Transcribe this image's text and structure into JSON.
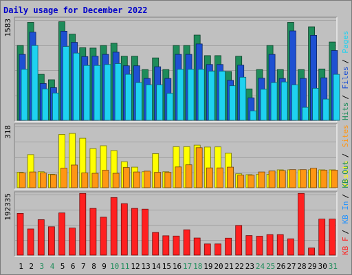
{
  "chart_data": {
    "type": "bar",
    "title": "Daily usage for December 2022",
    "categories": [
      "1",
      "2",
      "3",
      "4",
      "5",
      "6",
      "7",
      "8",
      "9",
      "10",
      "11",
      "12",
      "13",
      "14",
      "15",
      "16",
      "17",
      "18",
      "19",
      "20",
      "21",
      "22",
      "23",
      "24",
      "25",
      "26",
      "27",
      "28",
      "29",
      "30",
      "31"
    ],
    "weekend_days": [
      "3",
      "4",
      "10",
      "11",
      "17",
      "18",
      "24",
      "25",
      "31"
    ],
    "colors": {
      "hits": "#1e8c5a",
      "files": "#1e50d2",
      "pages": "#1ed2f0",
      "visits": "#ffff00",
      "sites": "#ff9614",
      "kbin": "#1e90ff",
      "kbout": "#1e8c5a",
      "kbf": "#ff2020",
      "title": "#0000c8",
      "weekend_label": "#1e8c5a"
    },
    "panels": [
      {
        "id": "requests",
        "ymax": 1583,
        "ytick_label": "1583",
        "legend": [
          {
            "text": "Hits",
            "color_key": "hits"
          },
          {
            "text": "Files",
            "color_key": "files"
          },
          {
            "text": "Pages",
            "color_key": "pages"
          }
        ],
        "series": [
          {
            "name": "Hits",
            "color_key": "hits",
            "values": [
              1180,
              1545,
              725,
              640,
              1555,
              1360,
              1145,
              1140,
              1180,
              1215,
              1010,
              1010,
              800,
              985,
              800,
              1180,
              1180,
              1345,
              1020,
              1020,
              770,
              1010,
              495,
              800,
              1180,
              800,
              1545,
              800,
              1475,
              810,
              1235
            ]
          },
          {
            "name": "Files",
            "color_key": "files",
            "values": [
              1040,
              1390,
              580,
              515,
              1405,
              1230,
              1005,
              1010,
              1040,
              1075,
              860,
              860,
              660,
              845,
              660,
              1040,
              1040,
              1205,
              880,
              880,
              630,
              870,
              355,
              665,
              1040,
              660,
              1410,
              660,
              1340,
              670,
              1100
            ]
          },
          {
            "name": "Pages",
            "color_key": "pages",
            "values": [
              805,
              1180,
              495,
              430,
              1165,
              1060,
              865,
              865,
              880,
              895,
              725,
              595,
              560,
              560,
              425,
              805,
              805,
              805,
              775,
              775,
              545,
              680,
              150,
              490,
              595,
              605,
              560,
              205,
              505,
              335,
              725
            ]
          }
        ]
      },
      {
        "id": "visitors",
        "ymax": 318,
        "ytick_label": "318",
        "legend": [
          {
            "text": "Visits",
            "color_key": "visits"
          },
          {
            "text": "Sites",
            "color_key": "sites"
          }
        ],
        "series": [
          {
            "name": "Visits",
            "color_key": "visits",
            "values": [
              80,
              172,
              83,
              70,
              277,
              282,
              257,
              203,
              218,
              193,
              135,
              107,
              83,
              177,
              83,
              213,
              213,
              221,
              211,
              212,
              179,
              72,
              68,
              70,
              70,
              93,
              93,
              93,
              93,
              93,
              93
            ]
          },
          {
            "name": "Sites",
            "color_key": "sites",
            "values": [
              77,
              82,
              77,
              68,
              102,
              118,
              77,
              75,
              91,
              75,
              105,
              82,
              86,
              80,
              80,
              108,
              119,
              208,
              103,
              103,
              107,
              65,
              65,
              82,
              87,
              89,
              94,
              94,
              101,
              91,
              91
            ]
          }
        ]
      },
      {
        "id": "volume",
        "ymax": 192335,
        "ytick_label": "192335",
        "legend": [
          {
            "text": "KB F",
            "color_key": "kbf"
          },
          {
            "text": "KB In",
            "color_key": "kbin"
          },
          {
            "text": "KB Out",
            "color_key": "kbout"
          }
        ],
        "series": [
          {
            "name": "KB F",
            "color_key": "kbf",
            "values": [
              132500,
              83000,
              112500,
              90000,
              134000,
              86000,
              196000,
              148500,
              120500,
              183000,
              163500,
              148500,
              146000,
              72000,
              61500,
              60500,
              80500,
              54500,
              35500,
              35500,
              54000,
              94000,
              62000,
              60000,
              65000,
              65000,
              51500,
              196000,
              22500,
              114500,
              114500
            ]
          }
        ]
      }
    ]
  }
}
